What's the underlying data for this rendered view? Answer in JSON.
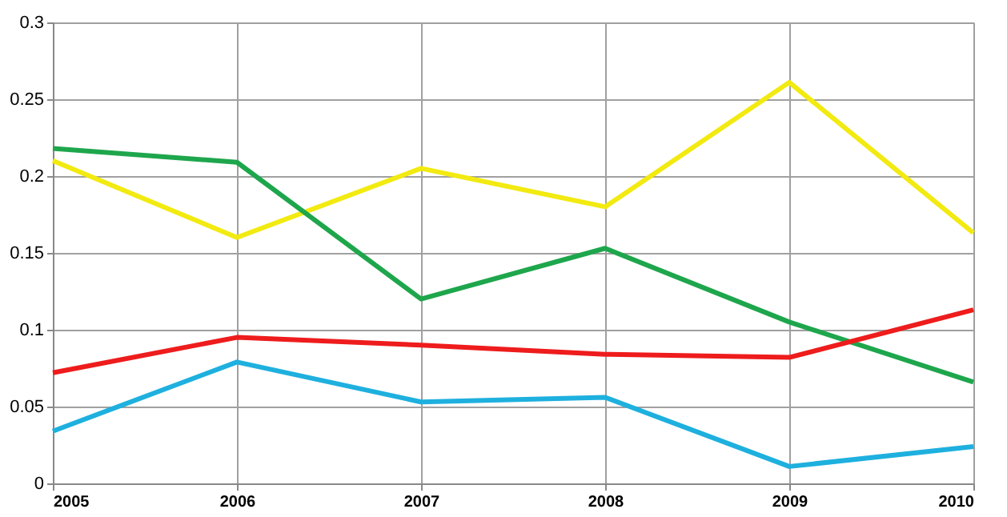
{
  "chart_data": {
    "type": "line",
    "x": [
      2005,
      2006,
      2007,
      2008,
      2009,
      2010
    ],
    "series": [
      {
        "color": "#f2ea10",
        "values": [
          0.21,
          0.16,
          0.205,
          0.18,
          0.261,
          0.163
        ]
      },
      {
        "color": "#1ea64c",
        "values": [
          0.218,
          0.209,
          0.12,
          0.153,
          0.105,
          0.066
        ]
      },
      {
        "color": "#ee1c1c",
        "values": [
          0.072,
          0.095,
          0.09,
          0.084,
          0.082,
          0.113
        ]
      },
      {
        "color": "#1eb0de",
        "values": [
          0.034,
          0.079,
          0.053,
          0.056,
          0.011,
          0.024
        ]
      }
    ],
    "xlim": [
      2005,
      2010
    ],
    "xticks": [
      2005,
      2006,
      2007,
      2008,
      2009,
      2010
    ],
    "ylim": [
      0,
      0.3
    ],
    "yticks": [
      0,
      0.05,
      0.1,
      0.15,
      0.2,
      0.25,
      0.3
    ],
    "grid": true,
    "legend": false,
    "marker": "none",
    "line_style": "solid"
  }
}
